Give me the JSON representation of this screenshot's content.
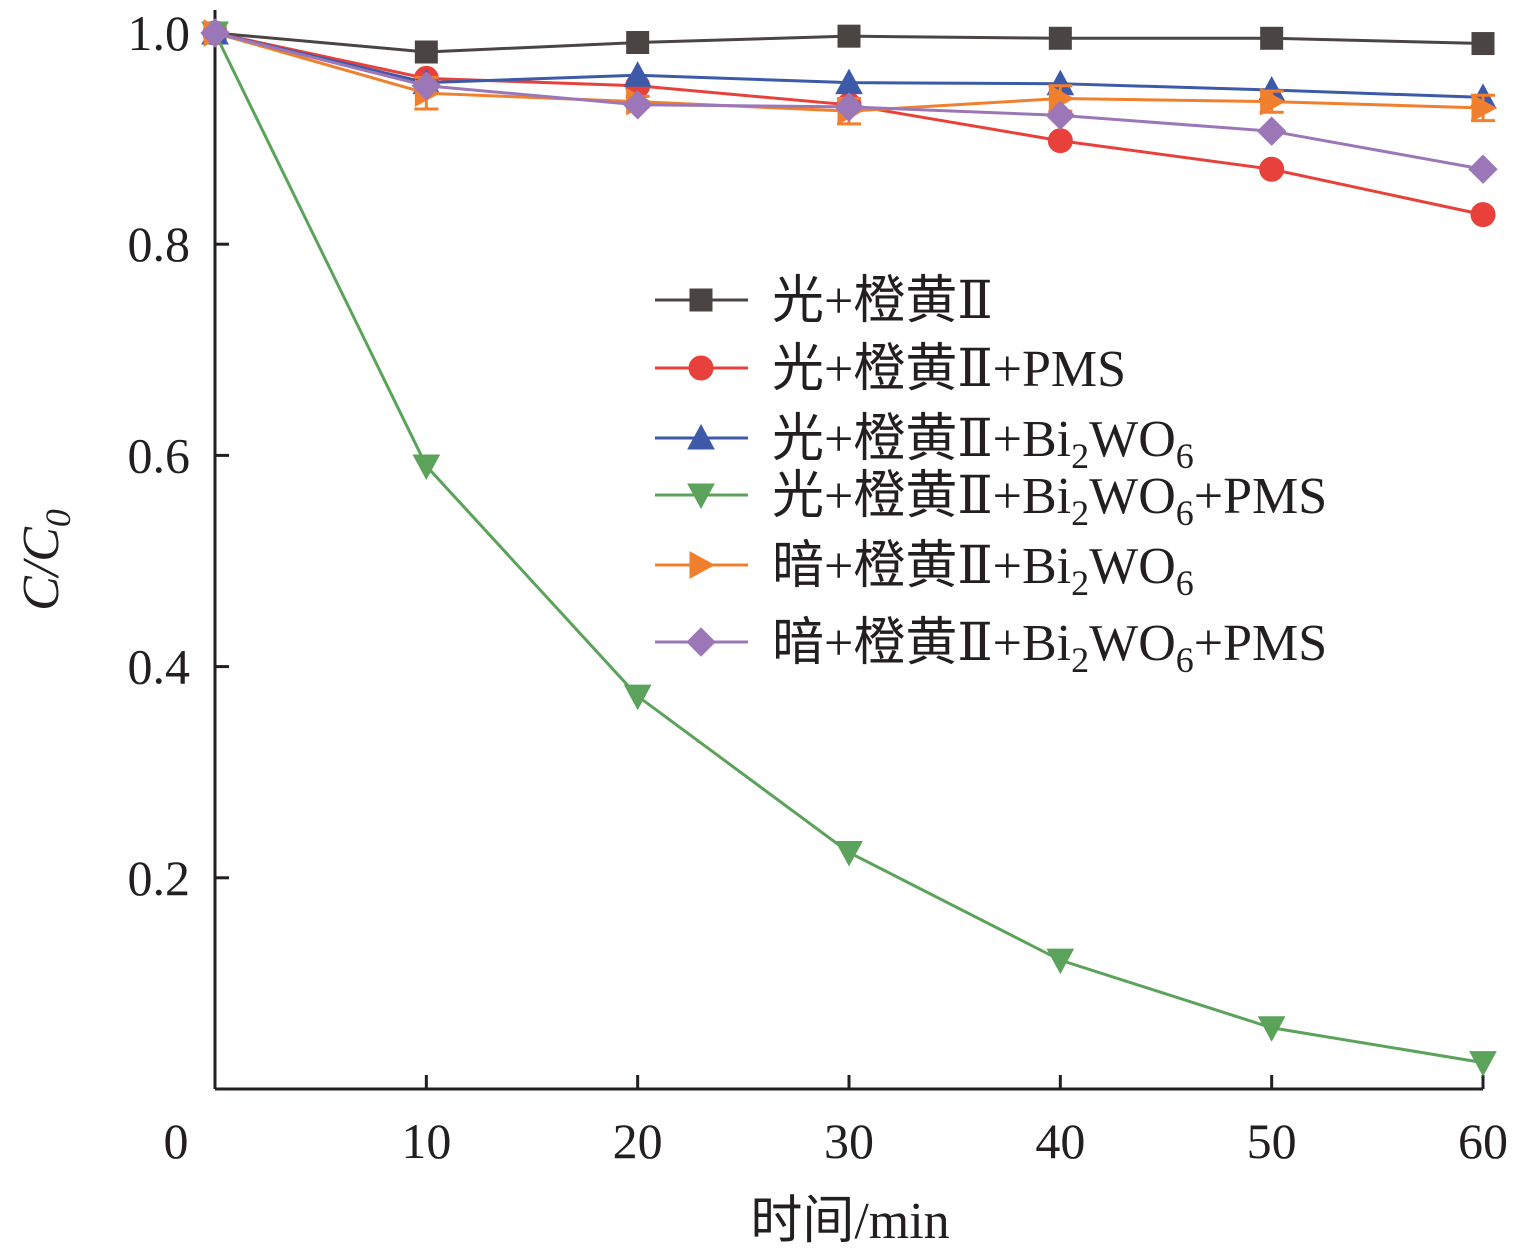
{
  "chart_data": {
    "type": "line",
    "xlabel": "时间/min",
    "ylabel": {
      "main": "C/C",
      "sub": "0"
    },
    "xlim": [
      0,
      60
    ],
    "ylim": [
      0,
      1.0
    ],
    "x_ticks": [
      0,
      10,
      20,
      30,
      40,
      50,
      60
    ],
    "x_tick_labels": [
      "0",
      "10",
      "20",
      "30",
      "40",
      "50",
      "60"
    ],
    "y_ticks": [
      0.2,
      0.4,
      0.6,
      0.8,
      1.0
    ],
    "y_tick_labels": [
      "0.2",
      "0.4",
      "0.6",
      "0.8",
      "1.0"
    ],
    "grid": false,
    "legend_position": "right",
    "x": [
      0,
      10,
      20,
      30,
      40,
      50,
      60
    ],
    "series": [
      {
        "name": "光+橙黄Ⅱ",
        "label_parts": [
          {
            "t": "光+橙黄Ⅱ"
          }
        ],
        "color": "#4a4443",
        "marker": "square",
        "values": [
          1.0,
          0.982,
          0.991,
          0.997,
          0.995,
          0.995,
          0.99
        ]
      },
      {
        "name": "光+橙黄Ⅱ+PMS",
        "label_parts": [
          {
            "t": "光+橙黄Ⅱ+PMS"
          }
        ],
        "color": "#e8413c",
        "marker": "circle",
        "values": [
          1.0,
          0.957,
          0.95,
          0.932,
          0.898,
          0.871,
          0.828
        ]
      },
      {
        "name": "光+橙黄Ⅱ+Bi2WO6",
        "label_parts": [
          {
            "t": "光+橙黄Ⅱ+Bi"
          },
          {
            "t": "2",
            "sub": true
          },
          {
            "t": "WO"
          },
          {
            "t": "6",
            "sub": true
          }
        ],
        "color": "#3d5aa8",
        "marker": "triangle-up",
        "values": [
          1.0,
          0.953,
          0.96,
          0.953,
          0.952,
          0.946,
          0.939
        ]
      },
      {
        "name": "光+橙黄Ⅱ+Bi2WO6+PMS",
        "label_parts": [
          {
            "t": "光+橙黄Ⅱ+Bi"
          },
          {
            "t": "2",
            "sub": true
          },
          {
            "t": "WO"
          },
          {
            "t": "6",
            "sub": true
          },
          {
            "t": "+PMS"
          }
        ],
        "color": "#5ba25a",
        "marker": "triangle-down",
        "values": [
          1.0,
          0.59,
          0.372,
          0.224,
          0.122,
          0.058,
          0.025
        ]
      },
      {
        "name": "暗+橙黄Ⅱ+Bi2WO6",
        "label_parts": [
          {
            "t": "暗+橙黄Ⅱ+Bi"
          },
          {
            "t": "2",
            "sub": true
          },
          {
            "t": "WO"
          },
          {
            "t": "6",
            "sub": true
          }
        ],
        "color": "#f07f2e",
        "marker": "triangle-right",
        "values": [
          1.0,
          0.943,
          0.935,
          0.926,
          0.938,
          0.935,
          0.929
        ],
        "error": [
          0,
          0.015,
          0.005,
          0.012,
          0.012,
          0.01,
          0.012
        ]
      },
      {
        "name": "暗+橙黄Ⅱ+Bi2WO6+PMS",
        "label_parts": [
          {
            "t": "暗+橙黄Ⅱ+Bi"
          },
          {
            "t": "2",
            "sub": true
          },
          {
            "t": "WO"
          },
          {
            "t": "6",
            "sub": true
          },
          {
            "t": "+PMS"
          }
        ],
        "color": "#9b77b8",
        "marker": "diamond",
        "values": [
          1.0,
          0.95,
          0.932,
          0.93,
          0.922,
          0.907,
          0.871
        ]
      }
    ]
  }
}
